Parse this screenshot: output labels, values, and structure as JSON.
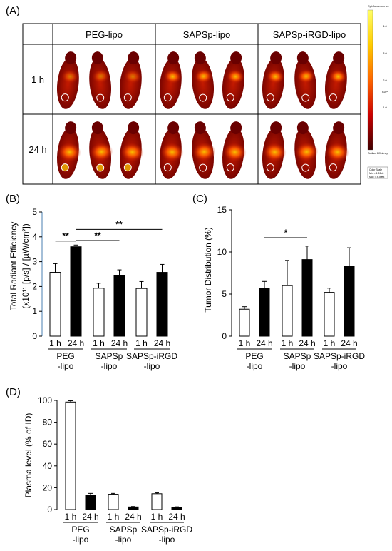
{
  "panels": {
    "a": {
      "label": "(A)"
    },
    "b": {
      "label": "(B)"
    },
    "c": {
      "label": "(C)"
    },
    "d": {
      "label": "(D)"
    }
  },
  "imaging": {
    "columns": [
      "PEG-lipo",
      "SAPSp-lipo",
      "SAPSp-iRGD-lipo"
    ],
    "rows": [
      "1 h",
      "24 h"
    ],
    "colorbar": {
      "top_label": "Epi-fluorescence",
      "tick_labels": [
        "4.0",
        "3.0",
        "2.0",
        "1.0"
      ],
      "exponent": "x10⁸",
      "bottom_labels": [
        "Radiant Efficiency",
        "Color Scale",
        "Min = 1.26e8",
        "Max = 4.30e8"
      ],
      "colors": [
        "#ffff66",
        "#ffcc00",
        "#ff6600",
        "#cc0000",
        "#400000"
      ]
    },
    "mouse_colors": {
      "background": "#ffffff",
      "body_dark": "#6a0000",
      "body_mid": "#c41a00",
      "hot": "#ff5a00",
      "hottest": "#ffd000"
    }
  },
  "chart_data": [
    {
      "panel": "B",
      "type": "bar",
      "ylabel": "Total Radiant Efficiency",
      "ylabel2": "(x10¹¹ [p/s] / [µW/cm²])",
      "ylim": [
        0,
        5
      ],
      "yticks": [
        "0",
        "1",
        "2",
        "3",
        "4",
        "5"
      ],
      "groups": [
        {
          "name": "PEG",
          "name2": "-lipo"
        },
        {
          "name": "SAPSp",
          "name2": "-lipo"
        },
        {
          "name": "SAPSp-iRGD",
          "name2": "-lipo"
        }
      ],
      "timepoints": [
        "1 h",
        "24 h"
      ],
      "series": [
        {
          "values": [
            2.57,
            1.93,
            1.92
          ],
          "errors": [
            0.35,
            0.2,
            0.28
          ],
          "fill": "#ffffff"
        },
        {
          "values": [
            3.6,
            2.45,
            2.57
          ],
          "errors": [
            0.07,
            0.22,
            0.32
          ],
          "fill": "#000000"
        }
      ],
      "significance": [
        {
          "from": [
            0,
            0
          ],
          "to": [
            0,
            1
          ],
          "label": "**",
          "y": 3.83
        },
        {
          "from": [
            0,
            1
          ],
          "to": [
            1,
            1
          ],
          "label": "**",
          "y": 3.85
        },
        {
          "from": [
            0,
            1
          ],
          "to": [
            2,
            1
          ],
          "label": "**",
          "y": 4.3
        }
      ]
    },
    {
      "panel": "C",
      "type": "bar",
      "ylabel": "Tumor Distribution (%)",
      "ylim": [
        0,
        15
      ],
      "yticks": [
        "0",
        "5",
        "10",
        "15"
      ],
      "groups": [
        {
          "name": "PEG",
          "name2": "-lipo"
        },
        {
          "name": "SAPSp",
          "name2": "-lipo"
        },
        {
          "name": "SAPSp-iRGD",
          "name2": "-lipo"
        }
      ],
      "timepoints": [
        "1 h",
        "24 h"
      ],
      "series": [
        {
          "values": [
            3.2,
            6.0,
            5.2
          ],
          "errors": [
            0.3,
            3.0,
            0.5
          ],
          "fill": "#ffffff"
        },
        {
          "values": [
            5.7,
            9.1,
            8.3
          ],
          "errors": [
            0.8,
            1.6,
            2.2
          ],
          "fill": "#000000"
        }
      ],
      "significance": [
        {
          "from": [
            0,
            1
          ],
          "to": [
            1,
            1
          ],
          "label": "*",
          "y": 11.7
        }
      ]
    },
    {
      "panel": "D",
      "type": "bar",
      "ylabel": "Plasma level (% of ID)",
      "ylim": [
        0,
        100
      ],
      "yticks": [
        "0",
        "20",
        "40",
        "60",
        "80",
        "100"
      ],
      "groups": [
        {
          "name": "PEG",
          "name2": "-lipo"
        },
        {
          "name": "SAPSp",
          "name2": "-lipo"
        },
        {
          "name": "SAPSp-iRGD",
          "name2": "-lipo"
        }
      ],
      "timepoints": [
        "1 h",
        "24 h"
      ],
      "series": [
        {
          "values": [
            98.5,
            14.0,
            14.5
          ],
          "errors": [
            1.2,
            0.8,
            0.8
          ],
          "fill": "#ffffff"
        },
        {
          "values": [
            13.0,
            2.4,
            2.2
          ],
          "errors": [
            1.8,
            0.4,
            0.3
          ],
          "fill": "#000000"
        }
      ],
      "significance": []
    }
  ]
}
